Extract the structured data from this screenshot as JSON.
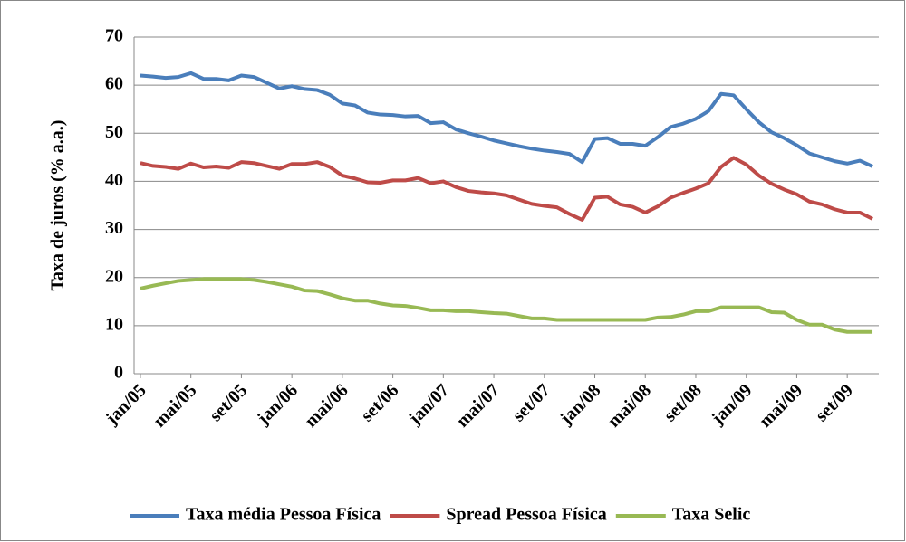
{
  "chart_data": {
    "type": "line",
    "y_label": "Taxa de juros (% a.a.)",
    "categories": [
      "jan/05",
      null,
      null,
      null,
      "mai/05",
      null,
      null,
      null,
      "set/05",
      null,
      null,
      null,
      "jan/06",
      null,
      null,
      null,
      "mai/06",
      null,
      null,
      null,
      "set/06",
      null,
      null,
      null,
      "jan/07",
      null,
      null,
      null,
      "mai/07",
      null,
      null,
      null,
      "set/07",
      null,
      null,
      null,
      "jan/08",
      null,
      null,
      null,
      "mai/08",
      null,
      null,
      null,
      "set/08",
      null,
      null,
      null,
      "jan/09",
      null,
      null,
      null,
      "mai/09",
      null,
      null,
      null,
      "set/09",
      null,
      null
    ],
    "series": [
      {
        "name": "Taxa média Pessoa Física",
        "color": "#4a7ebb",
        "values": [
          62,
          61.8,
          61.5,
          61.7,
          62.5,
          61.3,
          61.3,
          61,
          62,
          61.7,
          60.5,
          59.3,
          59.8,
          59.2,
          59,
          58,
          56.2,
          55.8,
          54.3,
          53.9,
          53.8,
          53.5,
          53.6,
          52.1,
          52.3,
          50.8,
          50,
          49.3,
          48.5,
          47.9,
          47.3,
          46.8,
          46.4,
          46.1,
          45.7,
          44,
          48.8,
          49,
          47.8,
          47.8,
          47.4,
          49.2,
          51.3,
          52,
          53,
          54.6,
          58.2,
          57.9,
          55,
          52.3,
          50.2,
          49,
          47.5,
          45.8,
          45,
          44.2,
          43.7,
          44.3,
          43.1
        ]
      },
      {
        "name": "Spread Pessoa Física",
        "color": "#be4b48",
        "values": [
          43.8,
          43.2,
          43,
          42.6,
          43.7,
          42.9,
          43.1,
          42.8,
          44,
          43.8,
          43.2,
          42.6,
          43.6,
          43.6,
          44,
          43,
          41.2,
          40.6,
          39.8,
          39.7,
          40.2,
          40.2,
          40.7,
          39.6,
          40,
          38.8,
          38,
          37.7,
          37.5,
          37.1,
          36.2,
          35.3,
          34.9,
          34.6,
          33.2,
          32,
          36.6,
          36.8,
          35.2,
          34.7,
          33.5,
          34.8,
          36.6,
          37.6,
          38.5,
          39.6,
          43,
          44.9,
          43.5,
          41.2,
          39.5,
          38.3,
          37.3,
          35.8,
          35.2,
          34.2,
          33.5,
          33.5,
          32.2
        ]
      },
      {
        "name": "Taxa Selic",
        "color": "#98b954",
        "values": [
          17.7,
          18.3,
          18.8,
          19.3,
          19.5,
          19.7,
          19.7,
          19.7,
          19.7,
          19.5,
          19.1,
          18.6,
          18.1,
          17.3,
          17.2,
          16.5,
          15.7,
          15.2,
          15.2,
          14.6,
          14.2,
          14.1,
          13.7,
          13.2,
          13.2,
          13,
          13,
          12.8,
          12.6,
          12.5,
          12,
          11.5,
          11.5,
          11.2,
          11.2,
          11.2,
          11.2,
          11.2,
          11.2,
          11.2,
          11.2,
          11.7,
          11.8,
          12.3,
          13,
          13,
          13.8,
          13.8,
          13.8,
          13.8,
          12.8,
          12.7,
          11.2,
          10.2,
          10.2,
          9.2,
          8.7,
          8.7,
          8.7
        ]
      }
    ],
    "ylim": [
      0,
      70
    ],
    "yticks": [
      0,
      10,
      20,
      30,
      40,
      50,
      60,
      70
    ],
    "grid": true,
    "legend": "bottom"
  }
}
